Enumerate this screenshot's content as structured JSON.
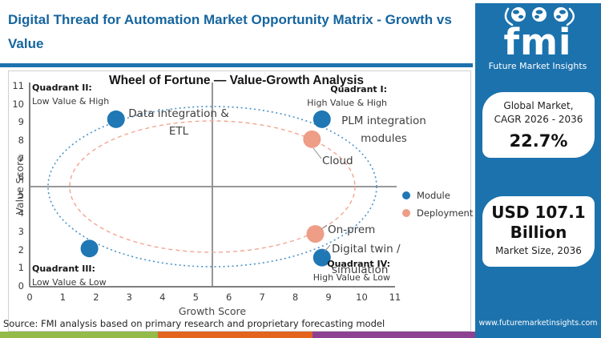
{
  "header": {
    "title": "Digital Thread for Automation Market Opportunity Matrix - Growth vs Value"
  },
  "logo": {
    "brand": "fmi",
    "subtitle": "Future Market Insights"
  },
  "sidebar": {
    "cards": [
      {
        "line1": "Global Market,",
        "line2": "CAGR 2026 - 2036",
        "value": "22.7%"
      },
      {
        "line1": "USD 107.1",
        "line2": "Billion",
        "caption": "Market Size, 2036"
      }
    ],
    "website": "www.futuremarketinsights.com"
  },
  "chart_data": {
    "type": "scatter",
    "title": "Wheel of Fortune — Value-Growth Analysis",
    "xlabel": "Growth Score",
    "ylabel": "Value Score",
    "xlim": [
      0,
      11
    ],
    "ylim": [
      0,
      11
    ],
    "x_ticks": [
      "0",
      "1",
      "2",
      "3",
      "4",
      "5",
      "6",
      "7",
      "8",
      "9",
      "10",
      "11"
    ],
    "y_ticks": [
      "0",
      "1",
      "2",
      "3",
      "4",
      "5",
      "6",
      "7",
      "8",
      "9",
      "10",
      "11"
    ],
    "quadrant_divider": {
      "x": 5.5,
      "y": 5.5
    },
    "quadrants": [
      {
        "name": "Quadrant II:",
        "desc": "Low Value & High",
        "position": "top-left"
      },
      {
        "name": "Quadrant I:",
        "desc": "High Value & High",
        "position": "top-right"
      },
      {
        "name": "Quadrant III:",
        "desc": "Low Value & Low",
        "position": "bottom-left"
      },
      {
        "name": "Quadrant IV:",
        "desc": "High Value & Low",
        "position": "bottom-right"
      }
    ],
    "series": [
      {
        "name": "Module",
        "color": "#1f77b4",
        "points": [
          {
            "label": "Data integration & ETL",
            "x": 2.6,
            "y": 9.2
          },
          {
            "label": "PLM integration modules",
            "x": 8.8,
            "y": 9.2
          },
          {
            "label": "Digital twin / simulation",
            "x": 8.8,
            "y": 1.6
          },
          {
            "label": "",
            "x": 1.8,
            "y": 2.1
          }
        ]
      },
      {
        "name": "Deployment",
        "color": "#ee9d87",
        "points": [
          {
            "label": "Cloud",
            "x": 8.5,
            "y": 8.1
          },
          {
            "label": "On-prem",
            "x": 8.6,
            "y": 2.9
          }
        ]
      }
    ],
    "ellipses": [
      {
        "series": "Module",
        "color": "#4a93c9",
        "style": "dotted"
      },
      {
        "series": "Deployment",
        "color": "#f2a692",
        "style": "dashed"
      }
    ],
    "legend": {
      "position": "right",
      "entries": [
        "Module",
        "Deployment"
      ]
    },
    "grid": false
  },
  "footer": {
    "source": "Source: FMI analysis based on primary research and proprietary forecasting model"
  },
  "colors": {
    "brand_blue": "#1c72ad",
    "title_blue": "#15659e",
    "module_dot": "#1f77b4",
    "deployment_dot": "#ee9d87",
    "strip_green": "#94ba4a",
    "strip_orange": "#e2641f",
    "strip_purple": "#8d4191"
  }
}
